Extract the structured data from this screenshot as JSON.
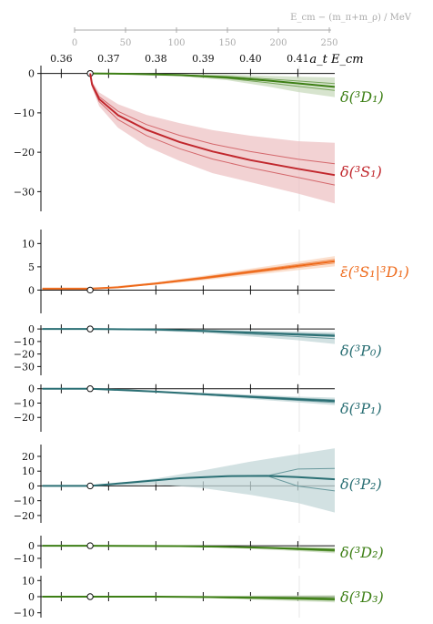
{
  "chart_data": {
    "type": "line",
    "figure": {
      "top_axis": {
        "label": "E_cm − (m_π+m_ρ) / MeV",
        "ticks": [
          0,
          50,
          100,
          150,
          200,
          250
        ],
        "range": [
          0,
          250
        ]
      },
      "x_axis": {
        "label": "a_t E_cm",
        "ticks": [
          "0.36",
          "0.37",
          "0.38",
          "0.39",
          "0.40",
          "0.41"
        ],
        "tick_values": [
          0.36,
          0.37,
          0.38,
          0.39,
          0.4,
          0.41
        ],
        "range": [
          0.3557,
          0.4178
        ],
        "threshold": 0.3661
      }
    },
    "panels": [
      {
        "label": "δ(³D₁)",
        "color": "#3d7f15",
        "ylim": [
          -35,
          2
        ],
        "yticks": [
          0,
          -10,
          -20,
          -30
        ],
        "central": [
          [
            0.3661,
            0
          ],
          [
            0.375,
            -0.1
          ],
          [
            0.385,
            -0.4
          ],
          [
            0.395,
            -1.0
          ],
          [
            0.4035,
            -1.8
          ],
          [
            0.41,
            -2.5
          ],
          [
            0.4178,
            -3.4
          ]
        ],
        "band_upper": [
          [
            0.3661,
            0
          ],
          [
            0.385,
            -0.2
          ],
          [
            0.395,
            -0.3
          ],
          [
            0.4035,
            -0.6
          ],
          [
            0.41,
            -0.8
          ],
          [
            0.4178,
            -1.0
          ]
        ],
        "band_lower": [
          [
            0.3661,
            0
          ],
          [
            0.385,
            -0.7
          ],
          [
            0.395,
            -1.7
          ],
          [
            0.4035,
            -3.3
          ],
          [
            0.41,
            -4.7
          ],
          [
            0.4178,
            -6.0
          ]
        ]
      },
      {
        "label": "δ(³S₁)",
        "color": "#c1272d",
        "ylim": [
          -35,
          2
        ],
        "yticks": [
          0,
          -10,
          -20,
          -30
        ],
        "central": [
          [
            0.3661,
            0
          ],
          [
            0.3665,
            -2.8
          ],
          [
            0.368,
            -6.5
          ],
          [
            0.372,
            -10.6
          ],
          [
            0.378,
            -14.3
          ],
          [
            0.385,
            -17.4
          ],
          [
            0.392,
            -19.8
          ],
          [
            0.4,
            -22.0
          ],
          [
            0.41,
            -24.2
          ],
          [
            0.4178,
            -25.8
          ]
        ],
        "band_upper": [
          [
            0.3661,
            0
          ],
          [
            0.3665,
            -2.0
          ],
          [
            0.368,
            -4.8
          ],
          [
            0.372,
            -7.8
          ],
          [
            0.378,
            -10.5
          ],
          [
            0.385,
            -12.6
          ],
          [
            0.392,
            -14.4
          ],
          [
            0.4,
            -15.8
          ],
          [
            0.41,
            -17.2
          ],
          [
            0.4178,
            -17.6
          ]
        ],
        "band_lower": [
          [
            0.3661,
            0
          ],
          [
            0.3665,
            -3.6
          ],
          [
            0.368,
            -8.3
          ],
          [
            0.372,
            -13.8
          ],
          [
            0.378,
            -18.5
          ],
          [
            0.385,
            -22.2
          ],
          [
            0.392,
            -25.3
          ],
          [
            0.4,
            -27.6
          ],
          [
            0.41,
            -30.5
          ],
          [
            0.4178,
            -33.0
          ]
        ]
      },
      {
        "label": "ε̄(³S₁|³D₁)",
        "color": "#ee6a1b",
        "ylim": [
          -5,
          13
        ],
        "yticks": [
          10,
          5,
          0
        ],
        "central": [
          [
            0.356,
            0.3
          ],
          [
            0.3661,
            0.3
          ],
          [
            0.372,
            0.6
          ],
          [
            0.38,
            1.4
          ],
          [
            0.39,
            2.6
          ],
          [
            0.4,
            3.9
          ],
          [
            0.41,
            5.2
          ],
          [
            0.4178,
            6.2
          ]
        ],
        "band_upper": [
          [
            0.356,
            0.35
          ],
          [
            0.3661,
            0.35
          ],
          [
            0.38,
            1.7
          ],
          [
            0.39,
            3.1
          ],
          [
            0.4,
            4.6
          ],
          [
            0.41,
            6.1
          ],
          [
            0.4178,
            7.3
          ]
        ],
        "band_lower": [
          [
            0.356,
            0.25
          ],
          [
            0.3661,
            0.25
          ],
          [
            0.38,
            1.1
          ],
          [
            0.39,
            2.1
          ],
          [
            0.4,
            3.2
          ],
          [
            0.41,
            4.3
          ],
          [
            0.4178,
            5.1
          ]
        ]
      },
      {
        "label": "δ(³P₀)",
        "color": "#2a6f74",
        "ylim": [
          -37,
          3
        ],
        "yticks": [
          0,
          -10,
          -20,
          -30
        ],
        "central": [
          [
            0.356,
            0
          ],
          [
            0.3661,
            0
          ],
          [
            0.38,
            -0.4
          ],
          [
            0.39,
            -1.5
          ],
          [
            0.4,
            -3.0
          ],
          [
            0.41,
            -4.5
          ],
          [
            0.4178,
            -5.5
          ]
        ],
        "band_upper": [
          [
            0.3661,
            0
          ],
          [
            0.39,
            -0.5
          ],
          [
            0.4,
            -1.2
          ],
          [
            0.41,
            -2.0
          ],
          [
            0.4178,
            -2.5
          ]
        ],
        "band_lower": [
          [
            0.3661,
            0
          ],
          [
            0.39,
            -3.0
          ],
          [
            0.4,
            -6.0
          ],
          [
            0.41,
            -9.0
          ],
          [
            0.4178,
            -12.0
          ]
        ]
      },
      {
        "label": "δ(³P₁)",
        "color": "#2a6f74",
        "ylim": [
          -30,
          3
        ],
        "yticks": [
          0,
          -10,
          -20
        ],
        "central": [
          [
            0.356,
            0
          ],
          [
            0.3661,
            0
          ],
          [
            0.38,
            -2.0
          ],
          [
            0.39,
            -3.8
          ],
          [
            0.4,
            -5.6
          ],
          [
            0.41,
            -7.4
          ],
          [
            0.4178,
            -8.6
          ]
        ],
        "band_upper": [
          [
            0.3661,
            0
          ],
          [
            0.39,
            -2.8
          ],
          [
            0.4,
            -4.2
          ],
          [
            0.41,
            -5.5
          ],
          [
            0.4178,
            -6.2
          ]
        ],
        "band_lower": [
          [
            0.3661,
            0
          ],
          [
            0.39,
            -4.8
          ],
          [
            0.4,
            -7.2
          ],
          [
            0.41,
            -9.5
          ],
          [
            0.4178,
            -11.5
          ]
        ]
      },
      {
        "label": "δ(³P₂)",
        "color": "#2a6f74",
        "ylim": [
          -25,
          28
        ],
        "yticks": [
          20,
          10,
          0,
          -10,
          -20
        ],
        "central": [
          [
            0.356,
            0
          ],
          [
            0.3661,
            0
          ],
          [
            0.375,
            2.4
          ],
          [
            0.385,
            5.2
          ],
          [
            0.395,
            6.6
          ],
          [
            0.4035,
            6.8
          ],
          [
            0.41,
            6.0
          ],
          [
            0.4178,
            4.5
          ]
        ],
        "band_upper": [
          [
            0.3661,
            0
          ],
          [
            0.38,
            5.0
          ],
          [
            0.39,
            10.5
          ],
          [
            0.4,
            16.5
          ],
          [
            0.41,
            21.5
          ],
          [
            0.4178,
            25.5
          ]
        ],
        "band_lower": [
          [
            0.3661,
            0
          ],
          [
            0.38,
            1.0
          ],
          [
            0.39,
            -1.5
          ],
          [
            0.4,
            -6.0
          ],
          [
            0.41,
            -11.5
          ],
          [
            0.4178,
            -18.0
          ]
        ]
      },
      {
        "label": "δ(³D₂)",
        "color": "#3d7f15",
        "ylim": [
          -18,
          8
        ],
        "yticks": [
          0,
          -10
        ],
        "central": [
          [
            0.356,
            0
          ],
          [
            0.3661,
            0
          ],
          [
            0.385,
            -0.3
          ],
          [
            0.395,
            -0.9
          ],
          [
            0.4035,
            -1.7
          ],
          [
            0.41,
            -2.5
          ],
          [
            0.4178,
            -3.5
          ]
        ],
        "band_upper": [
          [
            0.3661,
            0
          ],
          [
            0.395,
            -0.3
          ],
          [
            0.41,
            -0.8
          ],
          [
            0.4178,
            -1.2
          ]
        ],
        "band_lower": [
          [
            0.3661,
            0
          ],
          [
            0.395,
            -1.6
          ],
          [
            0.41,
            -4.3
          ],
          [
            0.4178,
            -6.0
          ]
        ]
      },
      {
        "label": "δ(³D₃)",
        "color": "#3d7f15",
        "ylim": [
          -13,
          13
        ],
        "yticks": [
          10,
          0,
          -10
        ],
        "central": [
          [
            0.356,
            0
          ],
          [
            0.3661,
            0
          ],
          [
            0.38,
            0
          ],
          [
            0.39,
            -0.2
          ],
          [
            0.4,
            -0.6
          ],
          [
            0.41,
            -1.0
          ],
          [
            0.4178,
            -1.5
          ]
        ],
        "band_upper": [
          [
            0.3661,
            0
          ],
          [
            0.39,
            0.4
          ],
          [
            0.4,
            0.6
          ],
          [
            0.41,
            0.8
          ],
          [
            0.4178,
            1.0
          ]
        ],
        "band_lower": [
          [
            0.3661,
            0
          ],
          [
            0.39,
            -0.7
          ],
          [
            0.4,
            -1.8
          ],
          [
            0.41,
            -2.8
          ],
          [
            0.4178,
            -3.5
          ]
        ]
      }
    ]
  }
}
